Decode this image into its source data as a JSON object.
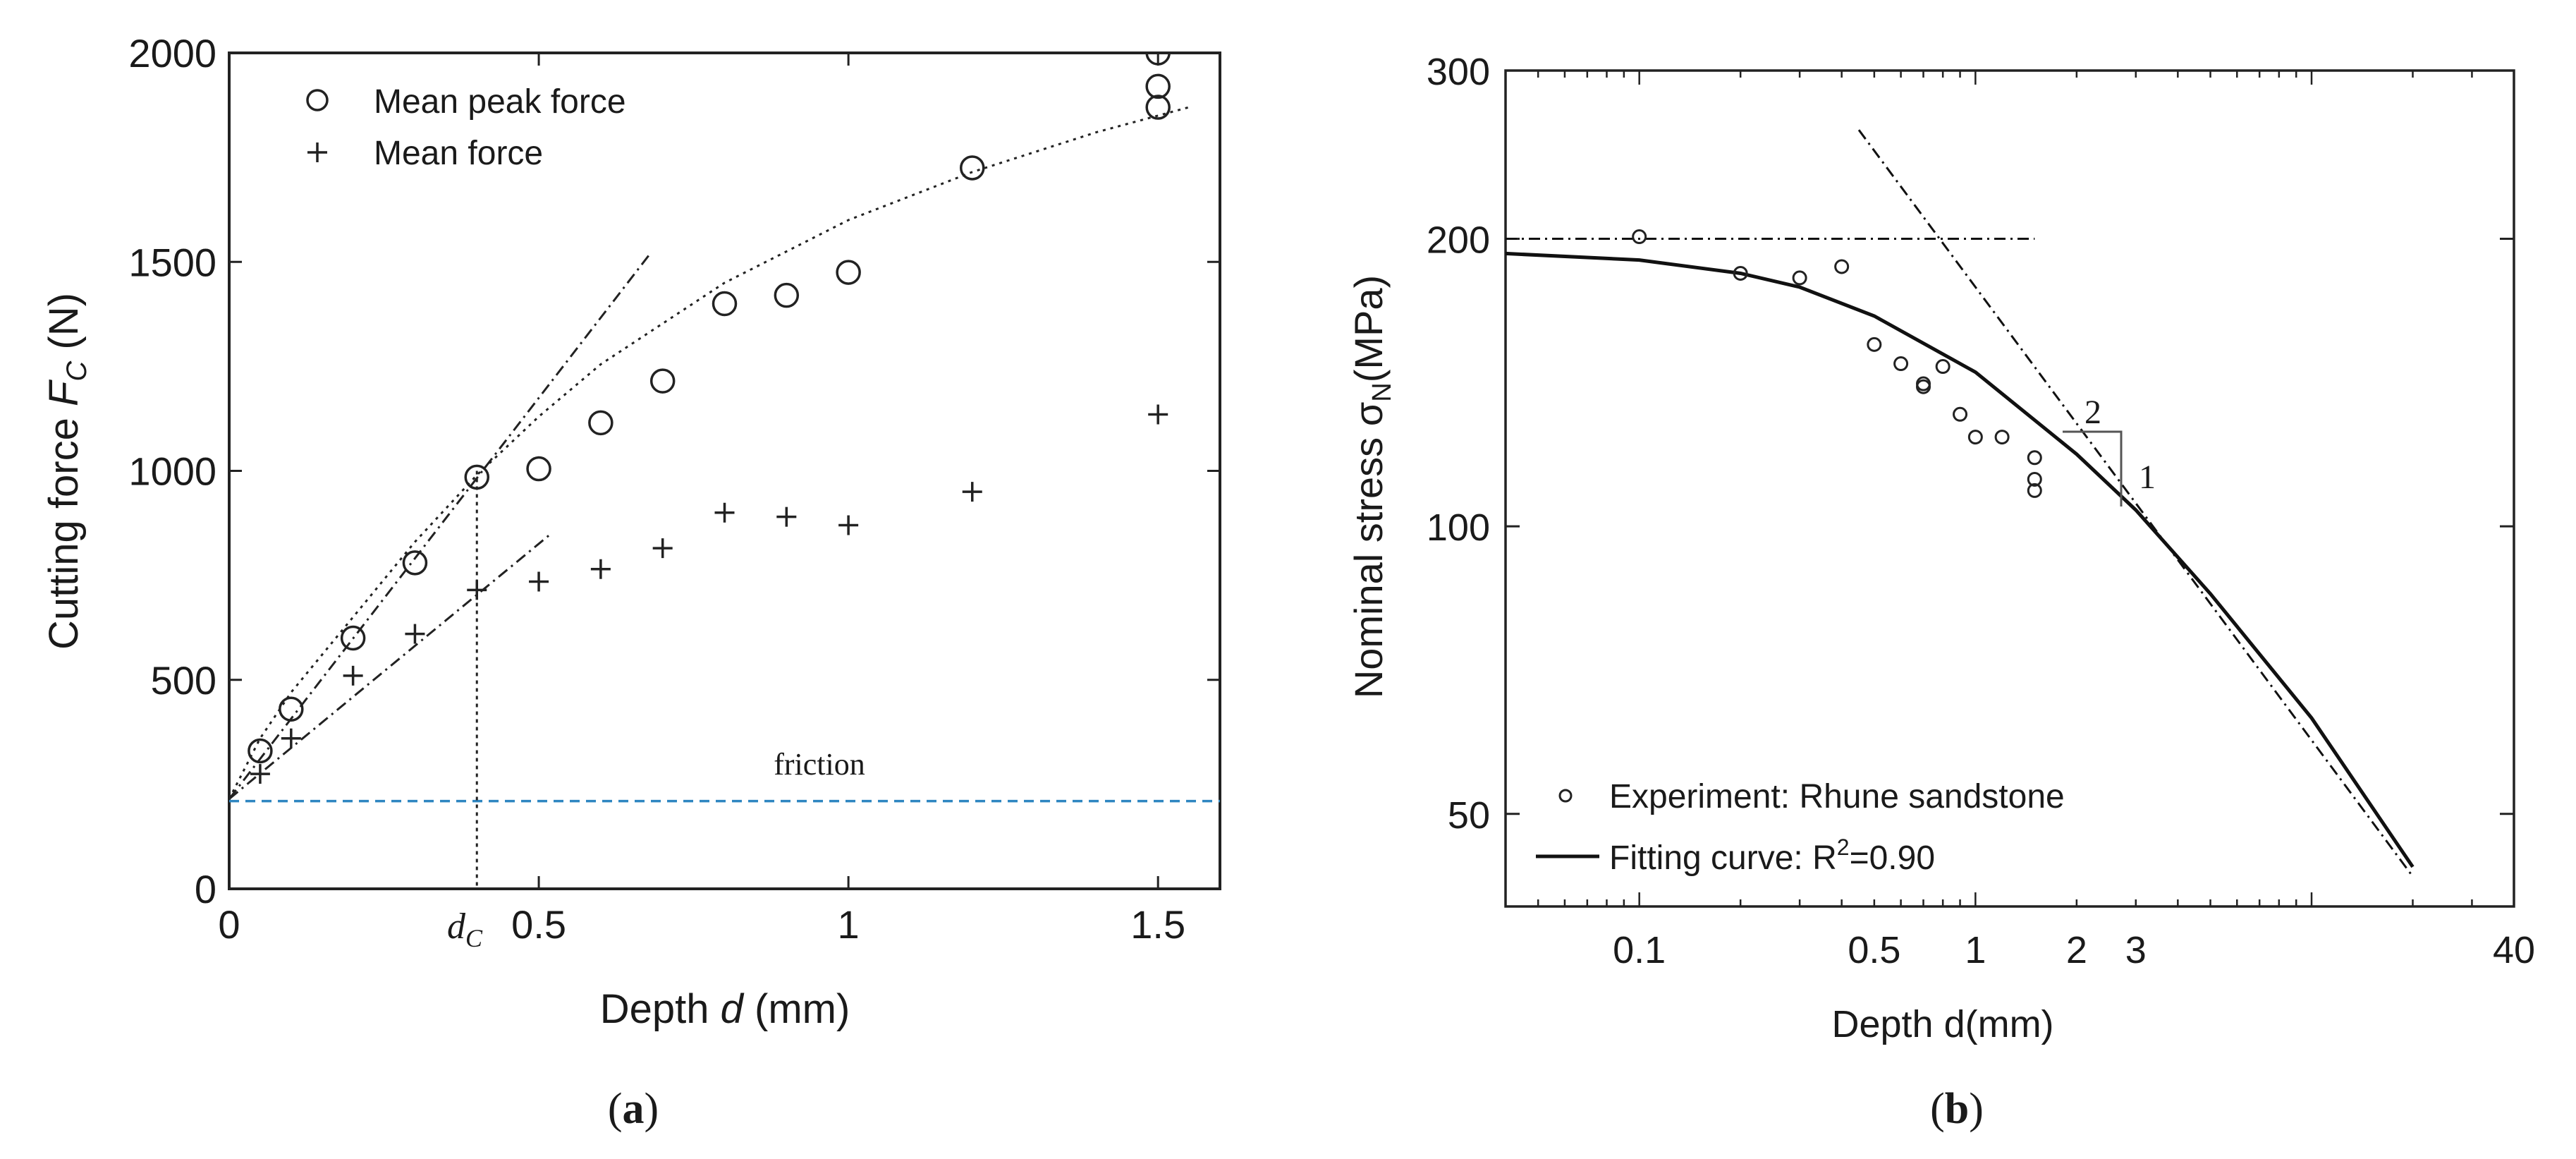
{
  "chart_data": [
    {
      "type": "scatter",
      "panel_label_open": "(",
      "panel_label_letter": "a",
      "panel_label_close": ")",
      "xlabel_pre": "Depth ",
      "xlabel_var": "d",
      "xlabel_post": " (mm)",
      "ylabel_pre": "Cutting force ",
      "ylabel_var": "F",
      "ylabel_sub": "C",
      "ylabel_post": " (N)",
      "xlim": [
        0,
        1.6
      ],
      "ylim": [
        0,
        2000
      ],
      "xticks": [
        0,
        0.5,
        1,
        1.5
      ],
      "xtick_labels": [
        "0",
        "0.5",
        "1",
        "1.5"
      ],
      "yticks": [
        0,
        500,
        1000,
        1500,
        2000
      ],
      "ytick_labels": [
        "0",
        "500",
        "1000",
        "1500",
        "2000"
      ],
      "series": [
        {
          "name": "Mean peak force",
          "marker": "circle",
          "x": [
            0.05,
            0.1,
            0.2,
            0.3,
            0.4,
            0.5,
            0.6,
            0.7,
            0.8,
            0.9,
            1.0,
            1.2,
            1.5,
            1.5,
            1.5
          ],
          "y": [
            330,
            430,
            600,
            780,
            985,
            1005,
            1115,
            1215,
            1400,
            1420,
            1475,
            1725,
            2000,
            1920,
            1870
          ]
        },
        {
          "name": "Mean force",
          "marker": "plus",
          "x": [
            0.05,
            0.1,
            0.2,
            0.3,
            0.4,
            0.5,
            0.6,
            0.7,
            0.8,
            0.9,
            1.0,
            1.2,
            1.5
          ],
          "y": [
            275,
            360,
            510,
            610,
            715,
            735,
            765,
            815,
            900,
            890,
            870,
            950,
            1135
          ]
        }
      ],
      "lines": [
        {
          "name": "fit-curve",
          "style": "dotted",
          "x": [
            0,
            0.05,
            0.1,
            0.2,
            0.3,
            0.4,
            0.5,
            0.6,
            0.8,
            1.0,
            1.2,
            1.4,
            1.5,
            1.55
          ],
          "y": [
            215,
            360,
            470,
            650,
            830,
            990,
            1130,
            1255,
            1450,
            1600,
            1715,
            1810,
            1850,
            1870
          ]
        },
        {
          "name": "tangent-peak",
          "style": "dash-dot",
          "x": [
            0,
            0.68
          ],
          "y": [
            215,
            1520
          ]
        },
        {
          "name": "tangent-mean",
          "style": "dash-dot",
          "x": [
            0,
            0.52
          ],
          "y": [
            215,
            850
          ]
        }
      ],
      "friction_level": 210,
      "friction_color": "#2e86c1",
      "friction_label": "friction",
      "dc_value": 0.4,
      "dc_label_base": "d",
      "dc_label_sub": "C"
    },
    {
      "type": "scatter",
      "panel_label_open": "(",
      "panel_label_letter": "b",
      "panel_label_close": ")",
      "xscale": "log",
      "yscale": "log",
      "xlabel": "Depth d(mm)",
      "ylabel_pre": "Nominal stress σ",
      "ylabel_sub": "N",
      "ylabel_post": "(MPa)",
      "xlim": [
        0.04,
        40
      ],
      "ylim": [
        40,
        300
      ],
      "xticks": [
        0.1,
        0.5,
        1,
        2,
        3,
        40
      ],
      "xtick_labels": [
        "0.1",
        "0.5",
        "1",
        "2",
        "3",
        "40"
      ],
      "yticks": [
        50,
        100,
        200,
        300
      ],
      "ytick_labels": [
        "50",
        "100",
        "200",
        "300"
      ],
      "series": [
        {
          "name": "Experiment: Rhune sandstone",
          "marker": "circle",
          "x": [
            0.1,
            0.2,
            0.3,
            0.4,
            0.5,
            0.6,
            0.7,
            0.7,
            0.8,
            0.9,
            1.0,
            1.2,
            1.5,
            1.5,
            1.5
          ],
          "y": [
            201,
            184,
            182,
            187,
            155,
            148,
            140,
            141,
            147,
            131,
            124,
            124,
            118,
            112,
            109
          ]
        }
      ],
      "lines": [
        {
          "name": "Fitting curve: R²=0.90",
          "style": "solid",
          "x": [
            0.04,
            0.1,
            0.2,
            0.3,
            0.5,
            1.0,
            2.0,
            3.0,
            5.0,
            10.0,
            20.0
          ],
          "y": [
            193,
            190,
            184,
            178,
            166,
            145,
            119,
            104,
            85,
            63,
            44
          ]
        },
        {
          "name": "asymptote-horizontal",
          "style": "dash-dot",
          "x": [
            0.04,
            1.5
          ],
          "y": [
            200,
            200
          ]
        },
        {
          "name": "asymptote-slope",
          "style": "dash-dot",
          "x": [
            0.45,
            20.0
          ],
          "y": [
            260,
            43
          ]
        }
      ],
      "legend_circle_label": "Experiment: Rhune sandstone",
      "legend_line_label_pre": "Fitting curve: R",
      "legend_line_label_sup": "2",
      "legend_line_label_post": "=0.90",
      "slope_rise": "1",
      "slope_run": "2"
    }
  ]
}
